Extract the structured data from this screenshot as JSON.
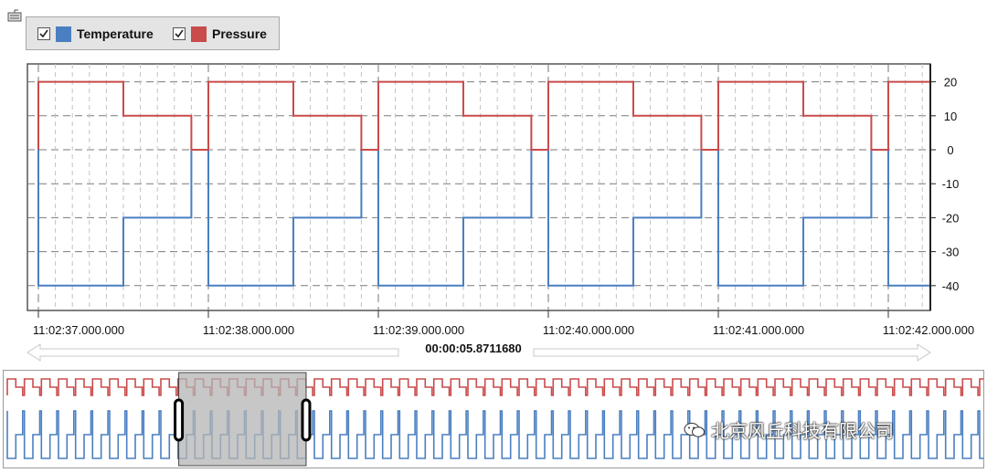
{
  "legend": {
    "items": [
      {
        "label": "Temperature",
        "color": "#4a7fc1",
        "checked": true
      },
      {
        "label": "Pressure",
        "color": "#c94b4b",
        "checked": true
      }
    ]
  },
  "chart_data": {
    "type": "line",
    "step": true,
    "series": [
      {
        "name": "Temperature",
        "color": "#4a7fc1",
        "x": [
          0,
          0.0,
          0.5,
          0.5,
          0.9,
          0.9,
          1.0,
          1.0,
          1.5,
          1.5,
          1.9,
          1.9,
          2.0,
          2.0,
          2.5,
          2.5,
          2.9,
          2.9,
          3.0,
          3.0,
          3.5,
          3.5,
          3.9,
          3.9,
          4.0,
          4.0,
          4.5,
          4.5,
          4.9,
          4.9,
          5.0,
          5.0,
          5.25
        ],
        "values": [
          0,
          -40,
          -40,
          -20,
          -20,
          0,
          0,
          -40,
          -40,
          -20,
          -20,
          0,
          0,
          -40,
          -40,
          -20,
          -20,
          0,
          0,
          -40,
          -40,
          -20,
          -20,
          0,
          0,
          -40,
          -40,
          -20,
          -20,
          0,
          0,
          -40,
          -40
        ]
      },
      {
        "name": "Pressure",
        "color": "#c94b4b",
        "x": [
          0,
          0.0,
          0.5,
          0.5,
          0.9,
          0.9,
          1.0,
          1.0,
          1.5,
          1.5,
          1.9,
          1.9,
          2.0,
          2.0,
          2.5,
          2.5,
          2.9,
          2.9,
          3.0,
          3.0,
          3.5,
          3.5,
          3.9,
          3.9,
          4.0,
          4.0,
          4.5,
          4.5,
          4.9,
          4.9,
          5.0,
          5.0,
          5.25
        ],
        "values": [
          0,
          20,
          20,
          10,
          10,
          0,
          0,
          20,
          20,
          10,
          10,
          0,
          0,
          20,
          20,
          10,
          10,
          0,
          0,
          20,
          20,
          10,
          10,
          0,
          0,
          20,
          20,
          10,
          10,
          0,
          0,
          20,
          20
        ]
      }
    ],
    "x_tick_labels": [
      "11:02:37.000.000",
      "11:02:38.000.000",
      "11:02:39.000.000",
      "11:02:40.000.000",
      "11:02:41.000.000",
      "11:02:42.000.000"
    ],
    "y_ticks": [
      20,
      10,
      0,
      -10,
      -20,
      -30,
      -40
    ],
    "ylim": [
      -45,
      25
    ],
    "grid": true,
    "legend": "top-left",
    "visible_duration": "00:00:05.8711680"
  },
  "navigator": {
    "selection_start": 0.175,
    "selection_end": 0.305,
    "total_periods": 60
  },
  "watermark": {
    "text": "北京风丘科技有限公司"
  },
  "colors": {
    "temperature": "#4a7fc1",
    "pressure": "#c94b4b",
    "grid": "#7a7a7a",
    "selection": "#b4b4b4"
  }
}
